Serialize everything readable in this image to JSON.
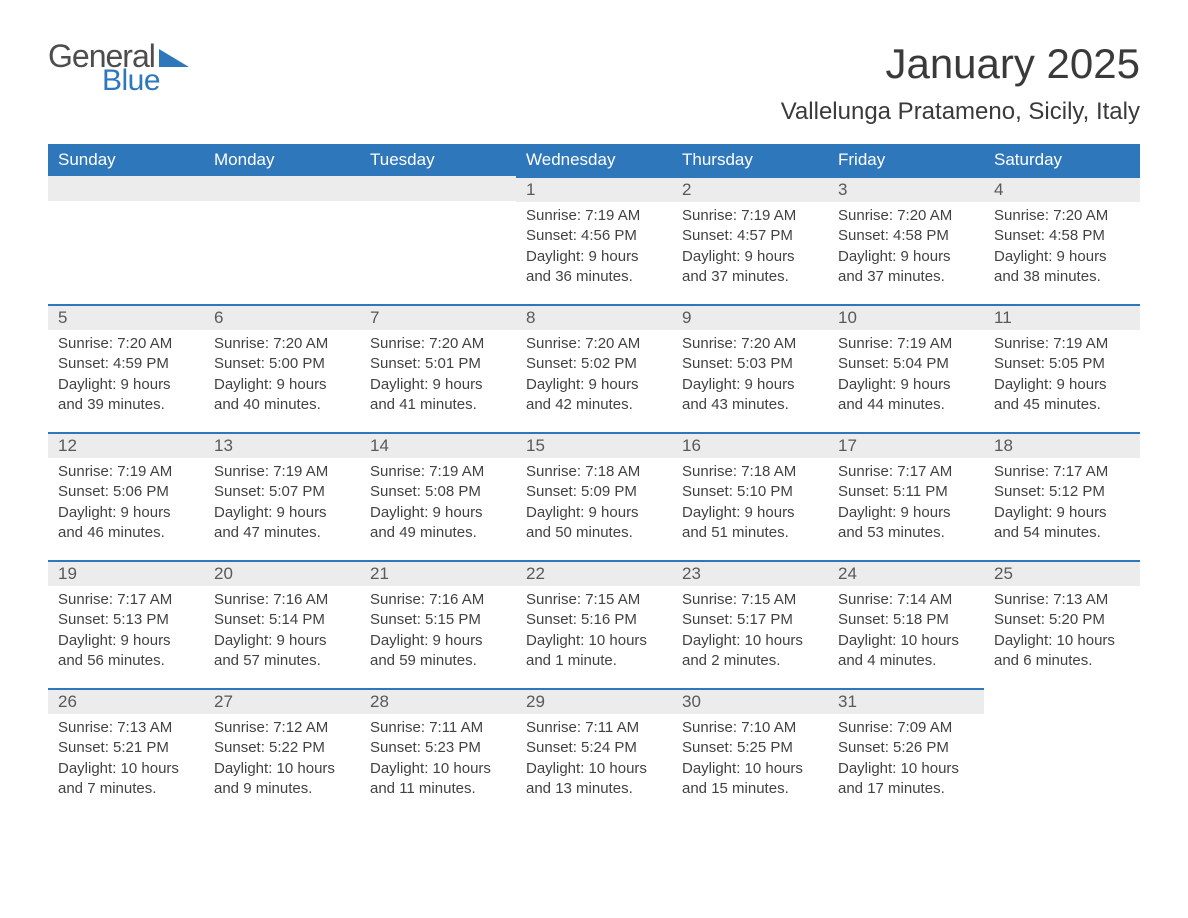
{
  "logo": {
    "general": "General",
    "blue": "Blue"
  },
  "title": "January 2025",
  "location": "Vallelunga Pratameno, Sicily, Italy",
  "colors": {
    "header_bg": "#2f77bb",
    "header_text": "#ffffff",
    "daynum_bg": "#ececec",
    "daynum_border": "#2f77bb",
    "body_text": "#424242",
    "page_bg": "#ffffff"
  },
  "day_labels": [
    "Sunday",
    "Monday",
    "Tuesday",
    "Wednesday",
    "Thursday",
    "Friday",
    "Saturday"
  ],
  "weeks": [
    [
      null,
      null,
      null,
      {
        "n": "1",
        "sunrise": "Sunrise: 7:19 AM",
        "sunset": "Sunset: 4:56 PM",
        "day1": "Daylight: 9 hours",
        "day2": "and 36 minutes."
      },
      {
        "n": "2",
        "sunrise": "Sunrise: 7:19 AM",
        "sunset": "Sunset: 4:57 PM",
        "day1": "Daylight: 9 hours",
        "day2": "and 37 minutes."
      },
      {
        "n": "3",
        "sunrise": "Sunrise: 7:20 AM",
        "sunset": "Sunset: 4:58 PM",
        "day1": "Daylight: 9 hours",
        "day2": "and 37 minutes."
      },
      {
        "n": "4",
        "sunrise": "Sunrise: 7:20 AM",
        "sunset": "Sunset: 4:58 PM",
        "day1": "Daylight: 9 hours",
        "day2": "and 38 minutes."
      }
    ],
    [
      {
        "n": "5",
        "sunrise": "Sunrise: 7:20 AM",
        "sunset": "Sunset: 4:59 PM",
        "day1": "Daylight: 9 hours",
        "day2": "and 39 minutes."
      },
      {
        "n": "6",
        "sunrise": "Sunrise: 7:20 AM",
        "sunset": "Sunset: 5:00 PM",
        "day1": "Daylight: 9 hours",
        "day2": "and 40 minutes."
      },
      {
        "n": "7",
        "sunrise": "Sunrise: 7:20 AM",
        "sunset": "Sunset: 5:01 PM",
        "day1": "Daylight: 9 hours",
        "day2": "and 41 minutes."
      },
      {
        "n": "8",
        "sunrise": "Sunrise: 7:20 AM",
        "sunset": "Sunset: 5:02 PM",
        "day1": "Daylight: 9 hours",
        "day2": "and 42 minutes."
      },
      {
        "n": "9",
        "sunrise": "Sunrise: 7:20 AM",
        "sunset": "Sunset: 5:03 PM",
        "day1": "Daylight: 9 hours",
        "day2": "and 43 minutes."
      },
      {
        "n": "10",
        "sunrise": "Sunrise: 7:19 AM",
        "sunset": "Sunset: 5:04 PM",
        "day1": "Daylight: 9 hours",
        "day2": "and 44 minutes."
      },
      {
        "n": "11",
        "sunrise": "Sunrise: 7:19 AM",
        "sunset": "Sunset: 5:05 PM",
        "day1": "Daylight: 9 hours",
        "day2": "and 45 minutes."
      }
    ],
    [
      {
        "n": "12",
        "sunrise": "Sunrise: 7:19 AM",
        "sunset": "Sunset: 5:06 PM",
        "day1": "Daylight: 9 hours",
        "day2": "and 46 minutes."
      },
      {
        "n": "13",
        "sunrise": "Sunrise: 7:19 AM",
        "sunset": "Sunset: 5:07 PM",
        "day1": "Daylight: 9 hours",
        "day2": "and 47 minutes."
      },
      {
        "n": "14",
        "sunrise": "Sunrise: 7:19 AM",
        "sunset": "Sunset: 5:08 PM",
        "day1": "Daylight: 9 hours",
        "day2": "and 49 minutes."
      },
      {
        "n": "15",
        "sunrise": "Sunrise: 7:18 AM",
        "sunset": "Sunset: 5:09 PM",
        "day1": "Daylight: 9 hours",
        "day2": "and 50 minutes."
      },
      {
        "n": "16",
        "sunrise": "Sunrise: 7:18 AM",
        "sunset": "Sunset: 5:10 PM",
        "day1": "Daylight: 9 hours",
        "day2": "and 51 minutes."
      },
      {
        "n": "17",
        "sunrise": "Sunrise: 7:17 AM",
        "sunset": "Sunset: 5:11 PM",
        "day1": "Daylight: 9 hours",
        "day2": "and 53 minutes."
      },
      {
        "n": "18",
        "sunrise": "Sunrise: 7:17 AM",
        "sunset": "Sunset: 5:12 PM",
        "day1": "Daylight: 9 hours",
        "day2": "and 54 minutes."
      }
    ],
    [
      {
        "n": "19",
        "sunrise": "Sunrise: 7:17 AM",
        "sunset": "Sunset: 5:13 PM",
        "day1": "Daylight: 9 hours",
        "day2": "and 56 minutes."
      },
      {
        "n": "20",
        "sunrise": "Sunrise: 7:16 AM",
        "sunset": "Sunset: 5:14 PM",
        "day1": "Daylight: 9 hours",
        "day2": "and 57 minutes."
      },
      {
        "n": "21",
        "sunrise": "Sunrise: 7:16 AM",
        "sunset": "Sunset: 5:15 PM",
        "day1": "Daylight: 9 hours",
        "day2": "and 59 minutes."
      },
      {
        "n": "22",
        "sunrise": "Sunrise: 7:15 AM",
        "sunset": "Sunset: 5:16 PM",
        "day1": "Daylight: 10 hours",
        "day2": "and 1 minute."
      },
      {
        "n": "23",
        "sunrise": "Sunrise: 7:15 AM",
        "sunset": "Sunset: 5:17 PM",
        "day1": "Daylight: 10 hours",
        "day2": "and 2 minutes."
      },
      {
        "n": "24",
        "sunrise": "Sunrise: 7:14 AM",
        "sunset": "Sunset: 5:18 PM",
        "day1": "Daylight: 10 hours",
        "day2": "and 4 minutes."
      },
      {
        "n": "25",
        "sunrise": "Sunrise: 7:13 AM",
        "sunset": "Sunset: 5:20 PM",
        "day1": "Daylight: 10 hours",
        "day2": "and 6 minutes."
      }
    ],
    [
      {
        "n": "26",
        "sunrise": "Sunrise: 7:13 AM",
        "sunset": "Sunset: 5:21 PM",
        "day1": "Daylight: 10 hours",
        "day2": "and 7 minutes."
      },
      {
        "n": "27",
        "sunrise": "Sunrise: 7:12 AM",
        "sunset": "Sunset: 5:22 PM",
        "day1": "Daylight: 10 hours",
        "day2": "and 9 minutes."
      },
      {
        "n": "28",
        "sunrise": "Sunrise: 7:11 AM",
        "sunset": "Sunset: 5:23 PM",
        "day1": "Daylight: 10 hours",
        "day2": "and 11 minutes."
      },
      {
        "n": "29",
        "sunrise": "Sunrise: 7:11 AM",
        "sunset": "Sunset: 5:24 PM",
        "day1": "Daylight: 10 hours",
        "day2": "and 13 minutes."
      },
      {
        "n": "30",
        "sunrise": "Sunrise: 7:10 AM",
        "sunset": "Sunset: 5:25 PM",
        "day1": "Daylight: 10 hours",
        "day2": "and 15 minutes."
      },
      {
        "n": "31",
        "sunrise": "Sunrise: 7:09 AM",
        "sunset": "Sunset: 5:26 PM",
        "day1": "Daylight: 10 hours",
        "day2": "and 17 minutes."
      },
      null
    ]
  ]
}
